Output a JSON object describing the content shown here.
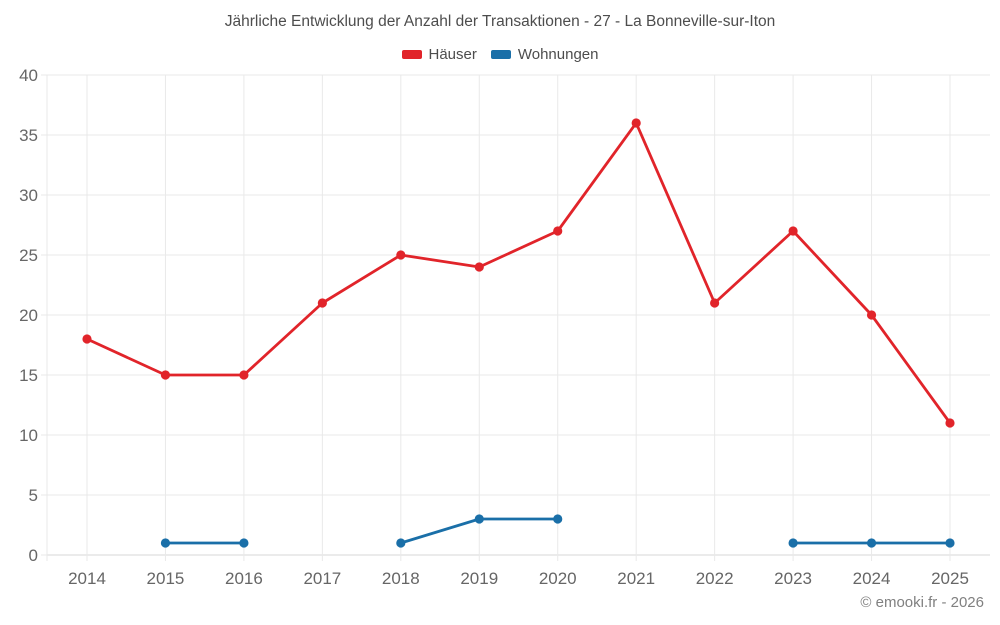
{
  "chart": {
    "title": "Jährliche Entwicklung der Anzahl der Transaktionen - 27 - La Bonneville-sur-Iton"
  },
  "legend": {
    "items": [
      {
        "label": "Häuser",
        "color": "#e1242a"
      },
      {
        "label": "Wohnungen",
        "color": "#1a6fa8"
      }
    ]
  },
  "chart_data": {
    "type": "line",
    "title": "Jährliche Entwicklung der Anzahl der Transaktionen - 27 - La Bonneville-sur-Iton",
    "categories": [
      "2014",
      "2015",
      "2016",
      "2017",
      "2018",
      "2019",
      "2020",
      "2021",
      "2022",
      "2023",
      "2024",
      "2025"
    ],
    "series": [
      {
        "name": "Häuser",
        "color": "#e1242a",
        "values": [
          18,
          15,
          15,
          21,
          25,
          24,
          27,
          36,
          21,
          27,
          20,
          11
        ]
      },
      {
        "name": "Wohnungen",
        "color": "#1a6fa8",
        "values": [
          null,
          1,
          1,
          null,
          1,
          3,
          3,
          null,
          null,
          1,
          1,
          1
        ]
      }
    ],
    "xlabel": "",
    "ylabel": "",
    "ylim": [
      0,
      40
    ],
    "ytick_step": 5,
    "grid": true,
    "legend_position": "top"
  },
  "colors": {
    "grid": "#e9e9e9",
    "axis_line": "#d7d7d7",
    "tick_text": "#666666",
    "title_text": "#4d4d4d"
  },
  "footer": {
    "copyright": "© emooki.fr - 2026"
  }
}
